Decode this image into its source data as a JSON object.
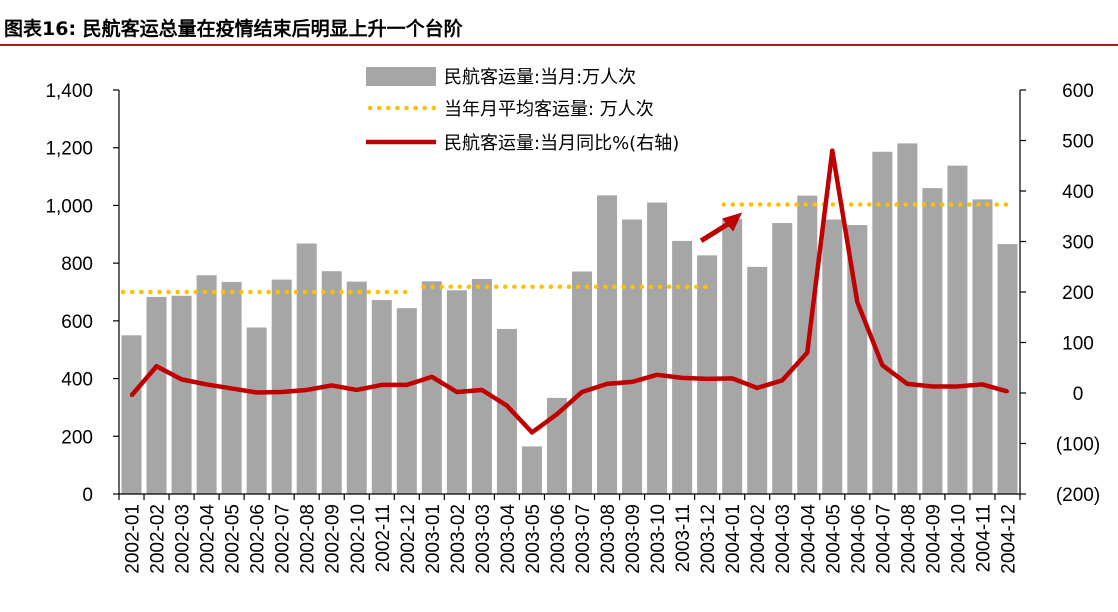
{
  "header": {
    "title": "图表16:  民航客运总量在疫情结束后明显上升一个台阶"
  },
  "colors": {
    "bar": "#a6a6a6",
    "avg": "#ffc000",
    "line": "#c00000",
    "title_rule": "#b31b1b"
  },
  "chart_data": {
    "type": "bar",
    "categories": [
      "2002-01",
      "2002-02",
      "2002-03",
      "2002-04",
      "2002-05",
      "2002-06",
      "2002-07",
      "2002-08",
      "2002-09",
      "2002-10",
      "2002-11",
      "2002-12",
      "2003-01",
      "2003-02",
      "2003-03",
      "2003-04",
      "2003-05",
      "2003-06",
      "2003-07",
      "2003-08",
      "2003-09",
      "2003-10",
      "2003-11",
      "2003-12",
      "2004-01",
      "2004-02",
      "2004-03",
      "2004-04",
      "2004-05",
      "2004-06",
      "2004-07",
      "2004-08",
      "2004-09",
      "2004-10",
      "2004-11",
      "2004-12"
    ],
    "series": [
      {
        "name": "民航客运量:当月:万人次",
        "type": "bar",
        "axis": "left",
        "values": [
          550,
          683,
          687,
          758,
          735,
          577,
          743,
          868,
          772,
          736,
          672,
          644,
          737,
          706,
          745,
          572,
          165,
          333,
          771,
          1035,
          951,
          1010,
          877,
          827,
          953,
          787,
          939,
          1034,
          951,
          932,
          1186,
          1215,
          1060,
          1138,
          1021,
          866
        ]
      },
      {
        "name": "当年月平均客运量: 万人次",
        "type": "dotted-line",
        "axis": "left",
        "values": [
          700,
          700,
          700,
          700,
          700,
          700,
          700,
          700,
          700,
          700,
          700,
          700,
          718,
          718,
          718,
          718,
          718,
          718,
          718,
          718,
          718,
          718,
          718,
          718,
          1003,
          1003,
          1003,
          1003,
          1003,
          1003,
          1003,
          1003,
          1003,
          1003,
          1003,
          1003
        ]
      },
      {
        "name": "民航客运量:当月同比%(右轴)",
        "type": "line",
        "axis": "right",
        "values": [
          -5,
          53,
          27,
          17,
          9,
          1,
          2,
          6,
          15,
          6,
          16,
          16,
          32,
          2,
          6,
          -25,
          -78,
          -42,
          2,
          18,
          22,
          36,
          30,
          28,
          29,
          10,
          25,
          80,
          480,
          180,
          55,
          18,
          13,
          13,
          17,
          3
        ]
      }
    ],
    "left_axis": {
      "min": 0,
      "max": 1400,
      "step": 200,
      "tick_labels": [
        "0",
        "200",
        "400",
        "600",
        "800",
        "1,000",
        "1,200",
        "1,400"
      ]
    },
    "right_axis": {
      "min": -200,
      "max": 600,
      "step": 100,
      "tick_labels": [
        "(200)",
        "(100)",
        "0",
        "100",
        "200",
        "300",
        "400",
        "500",
        "600"
      ]
    },
    "legend_position": "top-center",
    "annotation": "red arrow pointing from 2003 average up to 2004 average"
  }
}
